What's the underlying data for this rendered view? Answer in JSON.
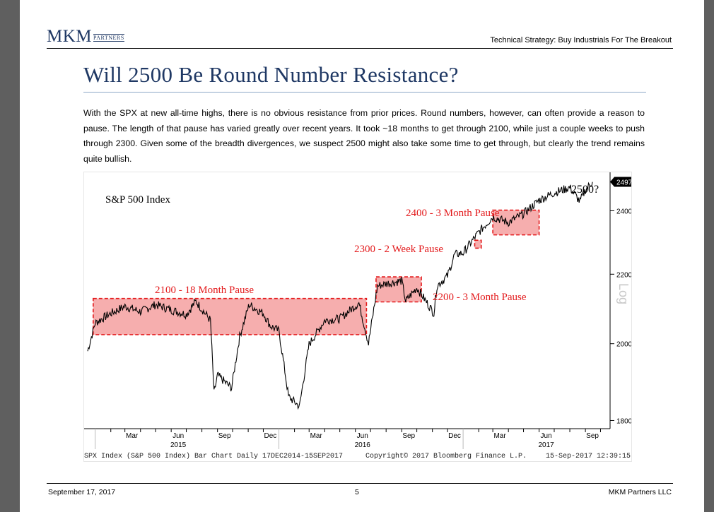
{
  "header": {
    "logo_main": "MKM",
    "logo_sub": "PARTNERS",
    "report_title": "Technical Strategy: Buy Industrials For The Breakout"
  },
  "section": {
    "heading": "Will 2500 Be Round Number Resistance?",
    "body": "With the SPX at new all-time highs, there is no obvious resistance from prior prices. Round numbers, however, can often provide a reason to pause. The length of that pause has varied greatly over recent years. It took ~18 months to get through 2100, while just a couple weeks to push through 2300. Given some of the breadth divergences, we suspect 2500 might also take some time to get through, but clearly the trend remains quite bullish."
  },
  "chart_data": {
    "type": "line",
    "title": "S&P 500 Index",
    "ylabel": "Log",
    "yscale": "log",
    "ylim": [
      1780,
      2530
    ],
    "y_ticks": [
      1800,
      2000,
      2200,
      2400
    ],
    "last_value_label": "2497.22",
    "x_ticks": [
      "Mar",
      "Jun",
      "Sep",
      "Dec",
      "Mar",
      "Jun",
      "Sep",
      "Dec",
      "Mar",
      "Jun",
      "Sep"
    ],
    "x_years": [
      "2015",
      "2016",
      "2017"
    ],
    "x": [
      "2014-12-17",
      "2015-01-01",
      "2015-02-01",
      "2015-03-01",
      "2015-04-01",
      "2015-05-01",
      "2015-06-01",
      "2015-07-01",
      "2015-07-20",
      "2015-08-18",
      "2015-08-25",
      "2015-09-01",
      "2015-09-29",
      "2015-10-15",
      "2015-11-03",
      "2015-12-01",
      "2015-12-15",
      "2016-01-01",
      "2016-01-20",
      "2016-02-11",
      "2016-03-01",
      "2016-04-01",
      "2016-05-01",
      "2016-06-08",
      "2016-06-27",
      "2016-07-15",
      "2016-08-01",
      "2016-09-01",
      "2016-09-09",
      "2016-10-01",
      "2016-11-04",
      "2016-11-10",
      "2016-12-01",
      "2016-12-15",
      "2017-01-01",
      "2017-02-01",
      "2017-03-01",
      "2017-04-01",
      "2017-05-01",
      "2017-06-01",
      "2017-07-01",
      "2017-08-01",
      "2017-08-21",
      "2017-09-01",
      "2017-09-15"
    ],
    "series": [
      {
        "values": [
          1980,
          2058,
          2085,
          2105,
          2090,
          2110,
          2095,
          2082,
          2120,
          2065,
          1868,
          1915,
          1882,
          2020,
          2110,
          2085,
          2050,
          2035,
          1860,
          1835,
          1998,
          2065,
          2070,
          2115,
          2000,
          2165,
          2172,
          2180,
          2120,
          2160,
          2085,
          2165,
          2195,
          2260,
          2265,
          2330,
          2380,
          2362,
          2390,
          2435,
          2460,
          2478,
          2430,
          2470,
          2497
        ]
      }
    ],
    "annotations": [
      {
        "text": "2100 - 18 Month Pause",
        "x0": "2014-12-28",
        "x1": "2016-06-23",
        "y0": 2025,
        "y1": 2128
      },
      {
        "text": "2200 - 3 Month Pause",
        "x0": "2016-07-12",
        "x1": "2016-10-10",
        "y0": 2118,
        "y1": 2192
      },
      {
        "text": "2300 - 2 Week Pause",
        "x0": "2017-01-24",
        "x1": "2017-02-06",
        "y0": 2280,
        "y1": 2305
      },
      {
        "text": "2400 - 3 Month Pause",
        "x0": "2017-03-01",
        "x1": "2017-06-01",
        "y0": 2322,
        "y1": 2402
      },
      {
        "text": "2500?"
      }
    ],
    "footer_left": "SPX Index (S&P 500 Index) Bar Chart  Daily 17DEC2014-15SEP2017",
    "footer_center": "Copyright© 2017 Bloomberg Finance L.P.",
    "footer_right": "15-Sep-2017  12:39:15"
  },
  "footer": {
    "date": "September 17, 2017",
    "page": "5",
    "company": "MKM Partners LLC"
  },
  "colors": {
    "brand": "#1f3864",
    "pause_fill": "#f4a0a0",
    "pause_border": "#e31a1c",
    "annotation_text": "#e31a1c"
  }
}
